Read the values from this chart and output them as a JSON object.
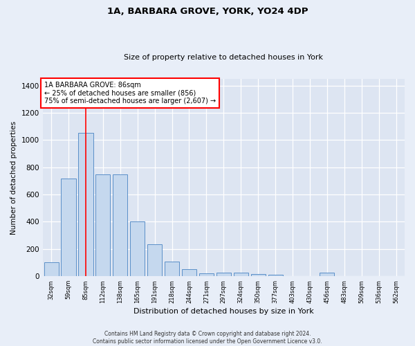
{
  "title": "1A, BARBARA GROVE, YORK, YO24 4DP",
  "subtitle": "Size of property relative to detached houses in York",
  "xlabel": "Distribution of detached houses by size in York",
  "ylabel": "Number of detached properties",
  "bar_color": "#c5d8ee",
  "bar_edge_color": "#5a8fc8",
  "categories": [
    "32sqm",
    "59sqm",
    "85sqm",
    "112sqm",
    "138sqm",
    "165sqm",
    "191sqm",
    "218sqm",
    "244sqm",
    "271sqm",
    "297sqm",
    "324sqm",
    "350sqm",
    "377sqm",
    "403sqm",
    "430sqm",
    "456sqm",
    "483sqm",
    "509sqm",
    "536sqm",
    "562sqm"
  ],
  "values": [
    105,
    715,
    1055,
    748,
    748,
    400,
    235,
    110,
    50,
    22,
    28,
    25,
    18,
    10,
    0,
    0,
    25,
    0,
    0,
    0,
    0
  ],
  "ylim": [
    0,
    1450
  ],
  "yticks": [
    0,
    200,
    400,
    600,
    800,
    1000,
    1200,
    1400
  ],
  "property_label": "1A BARBARA GROVE: 86sqm",
  "annotation_line1": "← 25% of detached houses are smaller (856)",
  "annotation_line2": "75% of semi-detached houses are larger (2,607) →",
  "red_line_x": 2,
  "fig_bg": "#e8eef8",
  "ax_bg": "#dde5f2",
  "grid_color": "#ffffff",
  "footer_line1": "Contains HM Land Registry data © Crown copyright and database right 2024.",
  "footer_line2": "Contains public sector information licensed under the Open Government Licence v3.0."
}
